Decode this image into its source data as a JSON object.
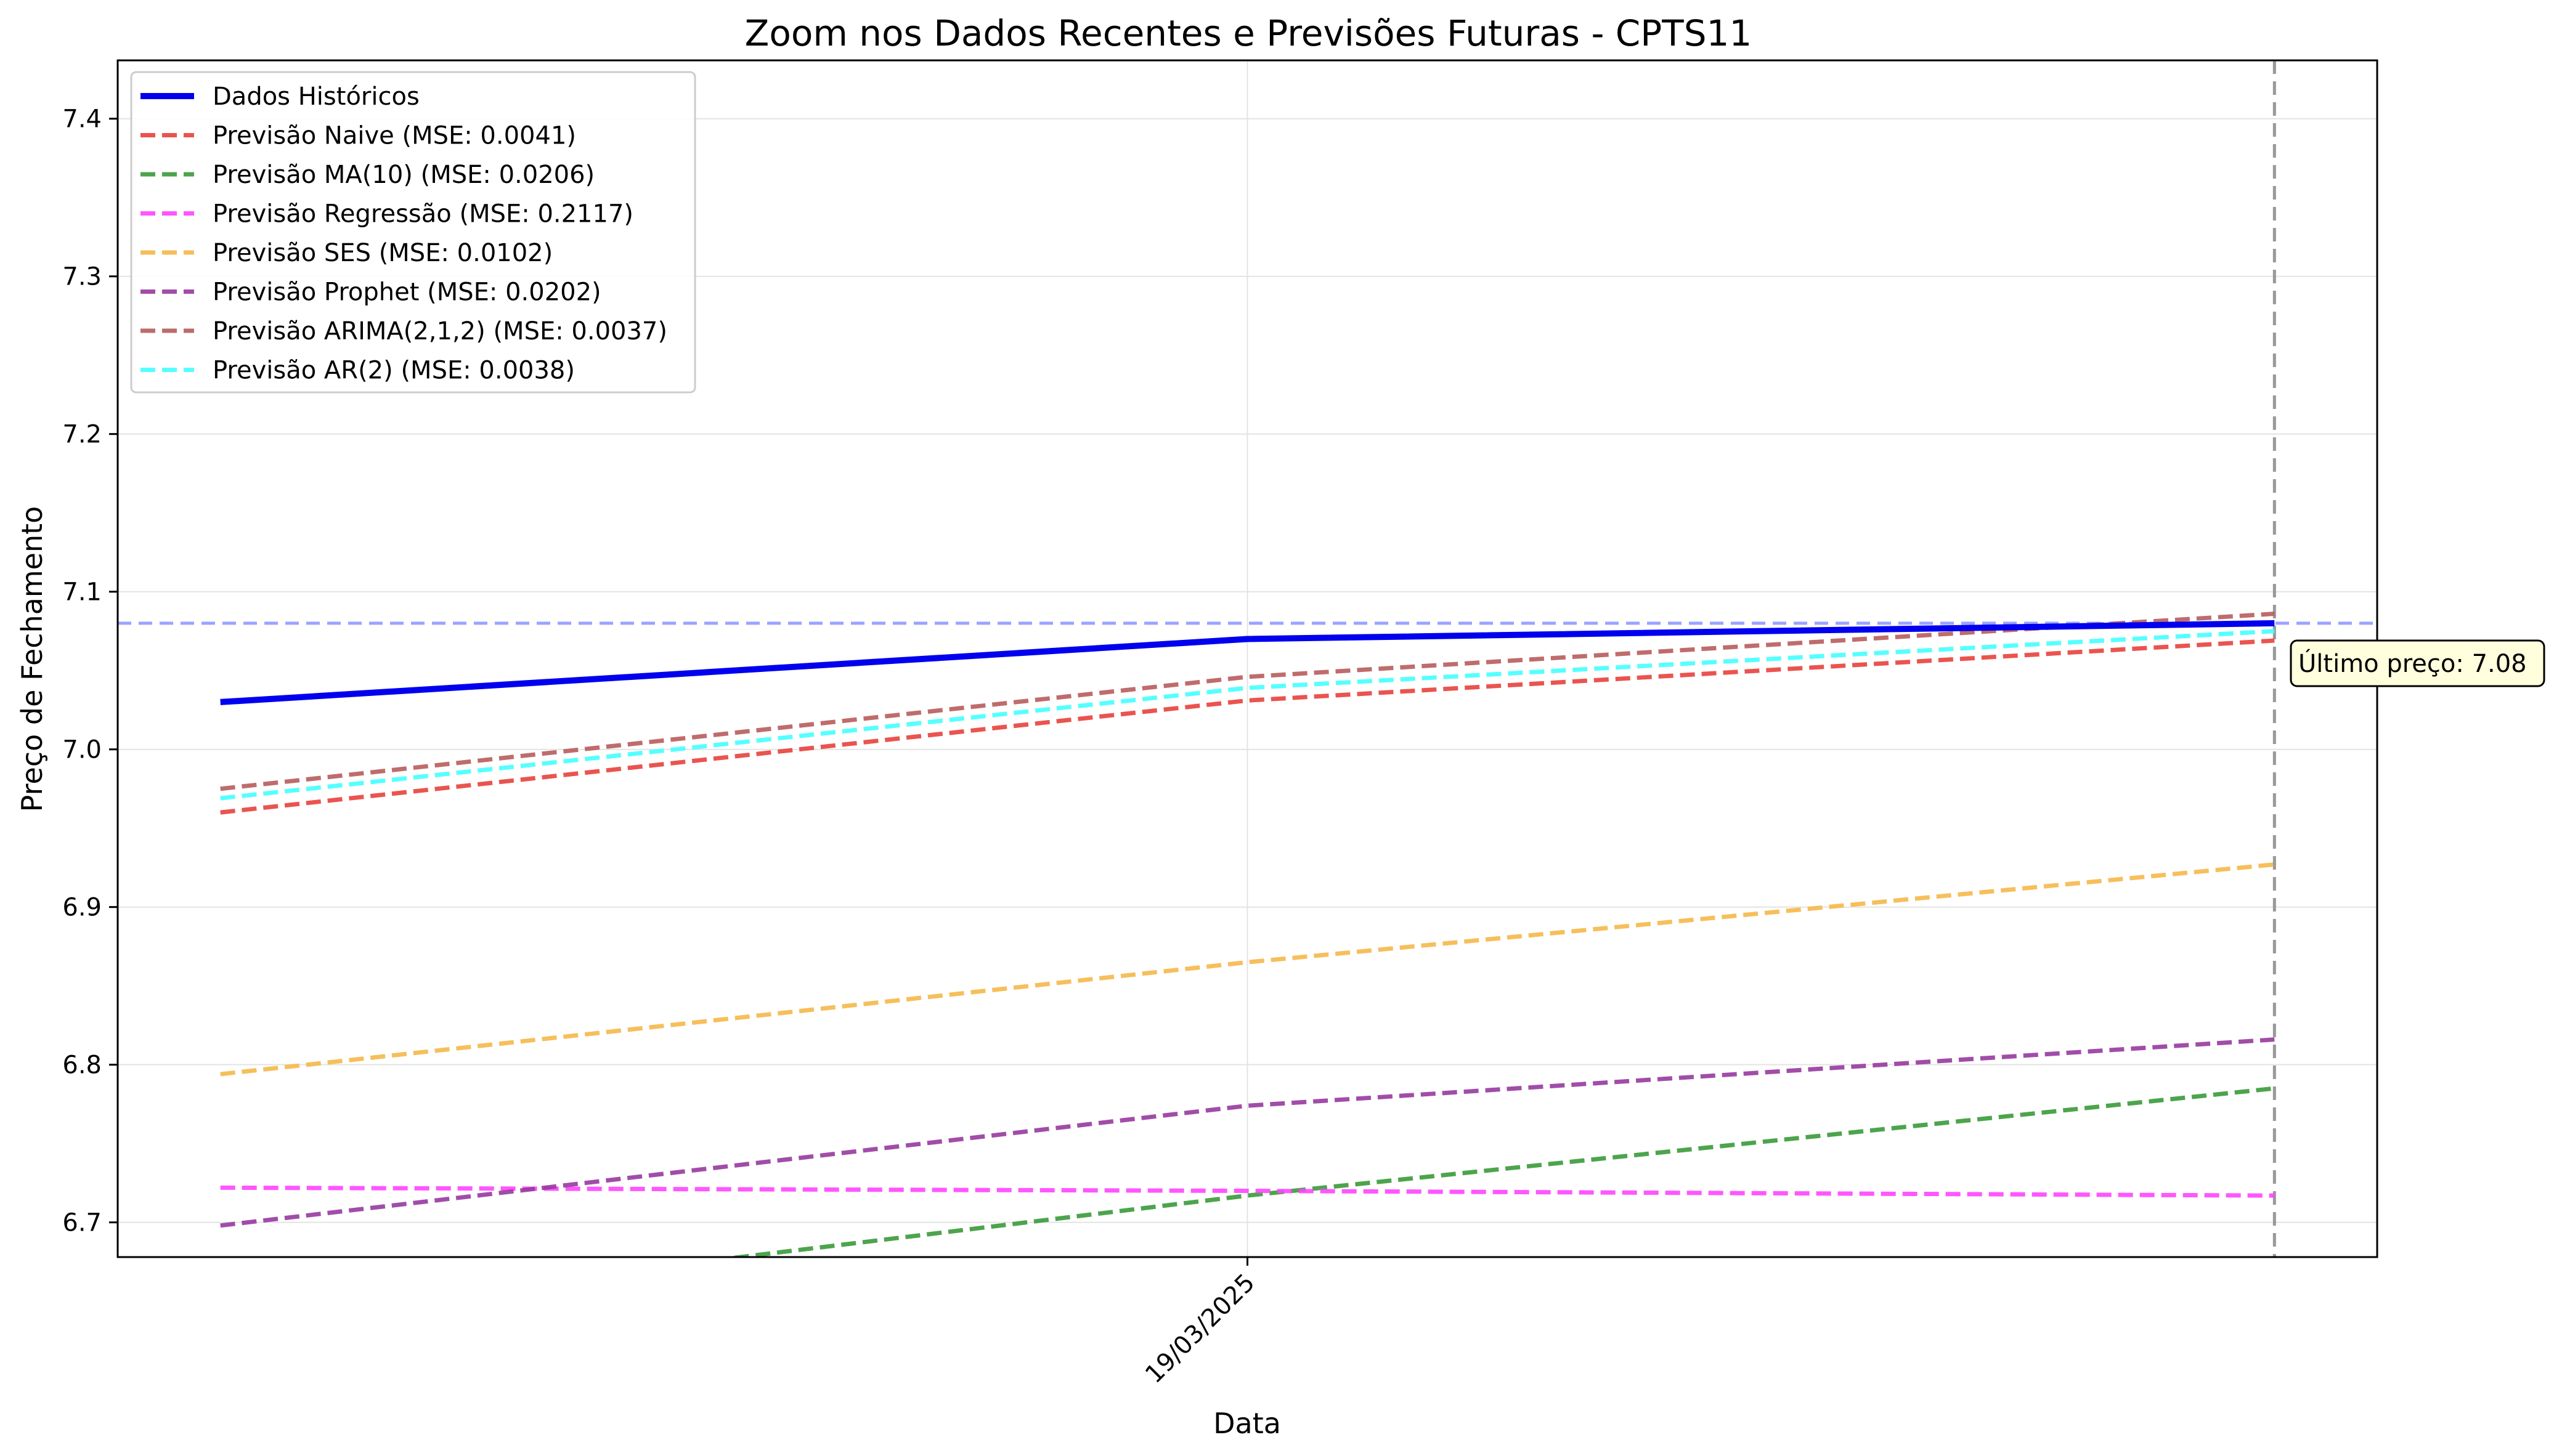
{
  "chart_data": {
    "type": "line",
    "title": "Zoom nos Dados Recentes e Previsões Futuras - CPTS11",
    "xlabel": "Data",
    "ylabel": "Preço de Fechamento",
    "x": [
      0,
      1,
      2
    ],
    "xlim": [
      -0.1,
      2.1
    ],
    "ylim": [
      6.678,
      7.437
    ],
    "yticks": [
      6.7,
      6.8,
      6.9,
      7.0,
      7.1,
      7.2,
      7.3,
      7.4
    ],
    "ytick_labels": [
      "6.7",
      "6.8",
      "6.9",
      "7.0",
      "7.1",
      "7.2",
      "7.3",
      "7.4"
    ],
    "xtick_positions": [
      1
    ],
    "xtick_labels": [
      "19/03/2025"
    ],
    "grid": true,
    "legend_position": "upper-left",
    "series": [
      {
        "name": "Dados Históricos",
        "values": [
          7.03,
          7.07,
          7.08
        ],
        "color": "#0000ee",
        "style": "solid"
      },
      {
        "name": "Previsão Naive (MSE: 0.0041)",
        "values": [
          6.96,
          7.031,
          7.069
        ],
        "color": "#e8413c",
        "style": "dashed"
      },
      {
        "name": "Previsão MA(10) (MSE: 0.0206)",
        "values": [
          6.638,
          6.717,
          6.785
        ],
        "color": "#3a9a3a",
        "style": "dashed"
      },
      {
        "name": "Previsão Regressão (MSE: 0.2117)",
        "values": [
          6.722,
          6.72,
          6.717
        ],
        "color": "#ff44ff",
        "style": "dashed"
      },
      {
        "name": "Previsão SES (MSE: 0.0102)",
        "values": [
          6.794,
          6.865,
          6.927
        ],
        "color": "#f5b84a",
        "style": "dashed"
      },
      {
        "name": "Previsão Prophet (MSE: 0.0202)",
        "values": [
          6.698,
          6.774,
          6.816
        ],
        "color": "#973a9e",
        "style": "dashed"
      },
      {
        "name": "Previsão ARIMA(2,1,2) (MSE: 0.0037)",
        "values": [
          6.975,
          7.046,
          7.086
        ],
        "color": "#b85c5c",
        "style": "dashed"
      },
      {
        "name": "Previsão AR(2) (MSE: 0.0038)",
        "values": [
          6.969,
          7.039,
          7.075
        ],
        "color": "#44ffff",
        "style": "dashed"
      }
    ],
    "reference_lines": {
      "last_price_y": 7.08,
      "last_price_color": "#9aa3ff",
      "last_date_x": 2,
      "last_date_color": "#999999"
    },
    "annotation": {
      "text": "Último preço: 7.08",
      "x": 2,
      "y": 7.08,
      "bg": "#ffffdd"
    }
  }
}
